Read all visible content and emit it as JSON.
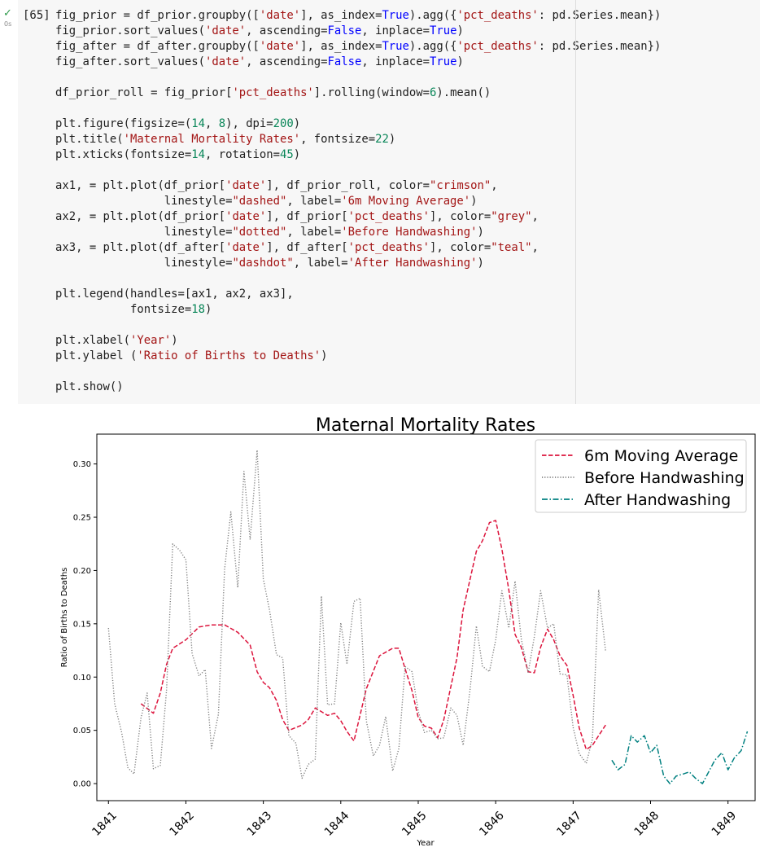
{
  "cell": {
    "exec_count": "[65]",
    "run_status": "✓",
    "run_time": "0s",
    "code_lines": [
      [
        [
          "f",
          "fig_prior = df_prior.groupby(["
        ],
        [
          "s",
          "'date'"
        ],
        [
          "f",
          "], as_index="
        ],
        [
          "k",
          "True"
        ],
        [
          "f",
          ").agg({"
        ],
        [
          "s",
          "'pct_deaths'"
        ],
        [
          "f",
          ": pd.Series.mean})"
        ]
      ],
      [
        [
          "f",
          "fig_prior.sort_values("
        ],
        [
          "s",
          "'date'"
        ],
        [
          "f",
          ", ascending="
        ],
        [
          "k",
          "False"
        ],
        [
          "f",
          ", inplace="
        ],
        [
          "k",
          "True"
        ],
        [
          "f",
          ")"
        ]
      ],
      [
        [
          "f",
          "fig_after = df_after.groupby(["
        ],
        [
          "s",
          "'date'"
        ],
        [
          "f",
          "], as_index="
        ],
        [
          "k",
          "True"
        ],
        [
          "f",
          ").agg({"
        ],
        [
          "s",
          "'pct_deaths'"
        ],
        [
          "f",
          ": pd.Series.mean})"
        ]
      ],
      [
        [
          "f",
          "fig_after.sort_values("
        ],
        [
          "s",
          "'date'"
        ],
        [
          "f",
          ", ascending="
        ],
        [
          "k",
          "False"
        ],
        [
          "f",
          ", inplace="
        ],
        [
          "k",
          "True"
        ],
        [
          "f",
          ")"
        ]
      ],
      [],
      [
        [
          "f",
          "df_prior_roll = fig_prior["
        ],
        [
          "s",
          "'pct_deaths'"
        ],
        [
          "f",
          "].rolling(window="
        ],
        [
          "n",
          "6"
        ],
        [
          "f",
          ").mean()"
        ]
      ],
      [],
      [
        [
          "f",
          "plt.figure(figsize=("
        ],
        [
          "n",
          "14"
        ],
        [
          "f",
          ", "
        ],
        [
          "n",
          "8"
        ],
        [
          "f",
          "), dpi="
        ],
        [
          "n",
          "200"
        ],
        [
          "f",
          ")"
        ]
      ],
      [
        [
          "f",
          "plt.title("
        ],
        [
          "s",
          "'Maternal Mortality Rates'"
        ],
        [
          "f",
          ", fontsize="
        ],
        [
          "n",
          "22"
        ],
        [
          "f",
          ")"
        ]
      ],
      [
        [
          "f",
          "plt.xticks(fontsize="
        ],
        [
          "n",
          "14"
        ],
        [
          "f",
          ", rotation="
        ],
        [
          "n",
          "45"
        ],
        [
          "f",
          ")"
        ]
      ],
      [],
      [
        [
          "f",
          "ax1, = plt.plot(df_prior["
        ],
        [
          "s",
          "'date'"
        ],
        [
          "f",
          "], df_prior_roll, color="
        ],
        [
          "s",
          "\"crimson\""
        ],
        [
          "f",
          ","
        ]
      ],
      [
        [
          "f",
          "                linestyle="
        ],
        [
          "s",
          "\"dashed\""
        ],
        [
          "f",
          ", label="
        ],
        [
          "s",
          "'6m Moving Average'"
        ],
        [
          "f",
          ")"
        ]
      ],
      [
        [
          "f",
          "ax2, = plt.plot(df_prior["
        ],
        [
          "s",
          "'date'"
        ],
        [
          "f",
          "], df_prior["
        ],
        [
          "s",
          "'pct_deaths'"
        ],
        [
          "f",
          "], color="
        ],
        [
          "s",
          "\"grey\""
        ],
        [
          "f",
          ","
        ]
      ],
      [
        [
          "f",
          "                linestyle="
        ],
        [
          "s",
          "\"dotted\""
        ],
        [
          "f",
          ", label="
        ],
        [
          "s",
          "'Before Handwashing'"
        ],
        [
          "f",
          ")"
        ]
      ],
      [
        [
          "f",
          "ax3, = plt.plot(df_after["
        ],
        [
          "s",
          "'date'"
        ],
        [
          "f",
          "], df_after["
        ],
        [
          "s",
          "'pct_deaths'"
        ],
        [
          "f",
          "], color="
        ],
        [
          "s",
          "\"teal\""
        ],
        [
          "f",
          ","
        ]
      ],
      [
        [
          "f",
          "                linestyle="
        ],
        [
          "s",
          "\"dashdot\""
        ],
        [
          "f",
          ", label="
        ],
        [
          "s",
          "'After Handwashing'"
        ],
        [
          "f",
          ")"
        ]
      ],
      [],
      [
        [
          "f",
          "plt.legend(handles=[ax1, ax2, ax3],"
        ]
      ],
      [
        [
          "f",
          "           fontsize="
        ],
        [
          "n",
          "18"
        ],
        [
          "f",
          ")"
        ]
      ],
      [],
      [
        [
          "f",
          "plt.xlabel("
        ],
        [
          "s",
          "'Year'"
        ],
        [
          "f",
          ")"
        ]
      ],
      [
        [
          "f",
          "plt.ylabel ("
        ],
        [
          "s",
          "'Ratio of Births to Deaths'"
        ],
        [
          "f",
          ")"
        ]
      ],
      [],
      [
        [
          "f",
          "plt.show()"
        ]
      ]
    ]
  },
  "colors": {
    "string": "#a31515",
    "keyword": "#0000ff",
    "number": "#098658",
    "moving_average": "#dc143c",
    "before": "#808080",
    "after": "#008080"
  },
  "chart_data": {
    "type": "line",
    "title": "Maternal Mortality Rates",
    "xlabel": "Year",
    "ylabel": "Ratio of Births to Deaths",
    "xlim": [
      1840.85,
      1849.35
    ],
    "ylim": [
      -0.016,
      0.328
    ],
    "x_ticks": [
      1841,
      1842,
      1843,
      1844,
      1845,
      1846,
      1847,
      1848,
      1849
    ],
    "x_tick_labels": [
      "1841",
      "1842",
      "1843",
      "1844",
      "1845",
      "1846",
      "1847",
      "1848",
      "1849"
    ],
    "y_ticks": [
      0.0,
      0.05,
      0.1,
      0.15,
      0.2,
      0.25,
      0.3
    ],
    "y_tick_labels": [
      "0.00",
      "0.05",
      "0.10",
      "0.15",
      "0.20",
      "0.25",
      "0.30"
    ],
    "grid": false,
    "legend_position": "top-right",
    "series": [
      {
        "name": "6m Moving Average",
        "color": "crimson",
        "linestyle": "dashed",
        "points": [
          [
            1841.42,
            0.075
          ],
          [
            1841.58,
            0.066
          ],
          [
            1841.67,
            0.085
          ],
          [
            1841.75,
            0.112
          ],
          [
            1841.83,
            0.127
          ],
          [
            1842.0,
            0.135
          ],
          [
            1842.17,
            0.147
          ],
          [
            1842.33,
            0.149
          ],
          [
            1842.5,
            0.149
          ],
          [
            1842.67,
            0.142
          ],
          [
            1842.83,
            0.13
          ],
          [
            1842.92,
            0.105
          ],
          [
            1843.0,
            0.095
          ],
          [
            1843.08,
            0.09
          ],
          [
            1843.17,
            0.078
          ],
          [
            1843.25,
            0.06
          ],
          [
            1843.33,
            0.05
          ],
          [
            1843.5,
            0.055
          ],
          [
            1843.58,
            0.06
          ],
          [
            1843.67,
            0.071
          ],
          [
            1843.83,
            0.064
          ],
          [
            1843.92,
            0.066
          ],
          [
            1844.0,
            0.059
          ],
          [
            1844.08,
            0.049
          ],
          [
            1844.17,
            0.04
          ],
          [
            1844.33,
            0.089
          ],
          [
            1844.5,
            0.12
          ],
          [
            1844.67,
            0.127
          ],
          [
            1844.75,
            0.127
          ],
          [
            1844.83,
            0.108
          ],
          [
            1844.92,
            0.087
          ],
          [
            1845.0,
            0.062
          ],
          [
            1845.08,
            0.054
          ],
          [
            1845.17,
            0.052
          ],
          [
            1845.25,
            0.043
          ],
          [
            1845.33,
            0.06
          ],
          [
            1845.5,
            0.118
          ],
          [
            1845.58,
            0.163
          ],
          [
            1845.75,
            0.218
          ],
          [
            1845.83,
            0.228
          ],
          [
            1845.92,
            0.245
          ],
          [
            1846.0,
            0.247
          ],
          [
            1846.08,
            0.22
          ],
          [
            1846.17,
            0.182
          ],
          [
            1846.25,
            0.14
          ],
          [
            1846.33,
            0.128
          ],
          [
            1846.42,
            0.105
          ],
          [
            1846.5,
            0.104
          ],
          [
            1846.58,
            0.128
          ],
          [
            1846.67,
            0.145
          ],
          [
            1846.75,
            0.135
          ],
          [
            1846.83,
            0.12
          ],
          [
            1846.92,
            0.111
          ],
          [
            1847.0,
            0.083
          ],
          [
            1847.08,
            0.052
          ],
          [
            1847.17,
            0.032
          ],
          [
            1847.25,
            0.036
          ],
          [
            1847.33,
            0.045
          ],
          [
            1847.42,
            0.055
          ]
        ]
      },
      {
        "name": "Before Handwashing",
        "color": "grey",
        "linestyle": "dotted",
        "points": [
          [
            1841.0,
            0.146
          ],
          [
            1841.08,
            0.075
          ],
          [
            1841.17,
            0.048
          ],
          [
            1841.25,
            0.015
          ],
          [
            1841.33,
            0.009
          ],
          [
            1841.42,
            0.062
          ],
          [
            1841.5,
            0.085
          ],
          [
            1841.58,
            0.014
          ],
          [
            1841.67,
            0.017
          ],
          [
            1841.75,
            0.088
          ],
          [
            1841.83,
            0.225
          ],
          [
            1841.92,
            0.219
          ],
          [
            1842.0,
            0.21
          ],
          [
            1842.08,
            0.122
          ],
          [
            1842.17,
            0.101
          ],
          [
            1842.25,
            0.107
          ],
          [
            1842.33,
            0.033
          ],
          [
            1842.42,
            0.065
          ],
          [
            1842.5,
            0.201
          ],
          [
            1842.58,
            0.255
          ],
          [
            1842.67,
            0.184
          ],
          [
            1842.75,
            0.293
          ],
          [
            1842.83,
            0.229
          ],
          [
            1842.92,
            0.313
          ],
          [
            1843.0,
            0.192
          ],
          [
            1843.08,
            0.163
          ],
          [
            1843.17,
            0.121
          ],
          [
            1843.25,
            0.118
          ],
          [
            1843.33,
            0.045
          ],
          [
            1843.42,
            0.038
          ],
          [
            1843.5,
            0.005
          ],
          [
            1843.58,
            0.018
          ],
          [
            1843.67,
            0.023
          ],
          [
            1843.75,
            0.176
          ],
          [
            1843.83,
            0.074
          ],
          [
            1843.92,
            0.075
          ],
          [
            1844.0,
            0.151
          ],
          [
            1844.08,
            0.112
          ],
          [
            1844.17,
            0.171
          ],
          [
            1844.25,
            0.174
          ],
          [
            1844.33,
            0.059
          ],
          [
            1844.42,
            0.026
          ],
          [
            1844.5,
            0.036
          ],
          [
            1844.58,
            0.063
          ],
          [
            1844.67,
            0.012
          ],
          [
            1844.75,
            0.033
          ],
          [
            1844.83,
            0.11
          ],
          [
            1844.92,
            0.105
          ],
          [
            1845.0,
            0.068
          ],
          [
            1845.08,
            0.048
          ],
          [
            1845.17,
            0.05
          ],
          [
            1845.25,
            0.042
          ],
          [
            1845.33,
            0.043
          ],
          [
            1845.42,
            0.071
          ],
          [
            1845.5,
            0.064
          ],
          [
            1845.58,
            0.036
          ],
          [
            1845.67,
            0.089
          ],
          [
            1845.75,
            0.148
          ],
          [
            1845.83,
            0.11
          ],
          [
            1845.92,
            0.105
          ],
          [
            1846.0,
            0.135
          ],
          [
            1846.08,
            0.181
          ],
          [
            1846.17,
            0.146
          ],
          [
            1846.25,
            0.19
          ],
          [
            1846.33,
            0.136
          ],
          [
            1846.42,
            0.104
          ],
          [
            1846.5,
            0.138
          ],
          [
            1846.58,
            0.181
          ],
          [
            1846.67,
            0.146
          ],
          [
            1846.75,
            0.15
          ],
          [
            1846.83,
            0.103
          ],
          [
            1846.92,
            0.102
          ],
          [
            1847.0,
            0.053
          ],
          [
            1847.08,
            0.028
          ],
          [
            1847.17,
            0.019
          ],
          [
            1847.25,
            0.042
          ],
          [
            1847.33,
            0.182
          ],
          [
            1847.42,
            0.124
          ]
        ]
      },
      {
        "name": "After Handwashing",
        "color": "teal",
        "linestyle": "dashdot",
        "points": [
          [
            1847.5,
            0.022
          ],
          [
            1847.58,
            0.013
          ],
          [
            1847.67,
            0.018
          ],
          [
            1847.75,
            0.045
          ],
          [
            1847.83,
            0.039
          ],
          [
            1847.92,
            0.045
          ],
          [
            1848.0,
            0.029
          ],
          [
            1848.08,
            0.036
          ],
          [
            1848.17,
            0.007
          ],
          [
            1848.25,
            0.0
          ],
          [
            1848.33,
            0.007
          ],
          [
            1848.42,
            0.009
          ],
          [
            1848.5,
            0.011
          ],
          [
            1848.58,
            0.005
          ],
          [
            1848.67,
            0.0
          ],
          [
            1848.75,
            0.011
          ],
          [
            1848.83,
            0.022
          ],
          [
            1848.92,
            0.029
          ],
          [
            1849.0,
            0.013
          ],
          [
            1849.08,
            0.024
          ],
          [
            1849.17,
            0.031
          ],
          [
            1849.25,
            0.049
          ]
        ]
      }
    ]
  }
}
